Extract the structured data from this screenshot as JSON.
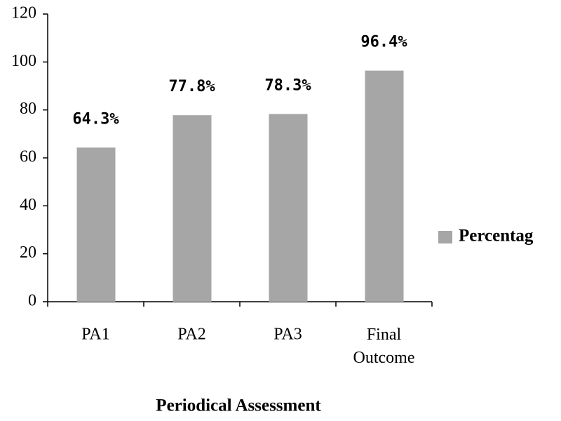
{
  "chart_data": {
    "type": "bar",
    "x_label": "Periodical Assessment",
    "categories": [
      "PA1",
      "PA2",
      "PA3",
      "Final Outcome"
    ],
    "series": [
      {
        "name": "Percentag",
        "color": "#a6a6a6",
        "values": [
          64.3,
          77.8,
          78.3,
          96.4
        ],
        "value_labels": [
          "64.3%",
          "77.8%",
          "78.3%",
          "96.4%"
        ]
      }
    ],
    "ylim": [
      0,
      120
    ],
    "yticks": [
      0,
      20,
      40,
      60,
      80,
      100,
      120
    ],
    "grid": false
  }
}
